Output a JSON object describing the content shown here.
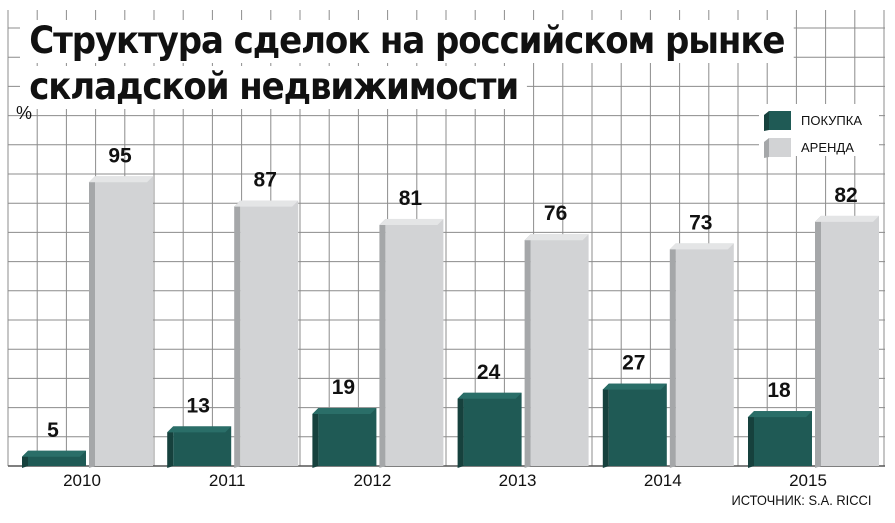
{
  "title": [
    "Структура сделок на российском рынке",
    "складской недвижимости"
  ],
  "unit": "%",
  "source": "ИСТОЧНИК: S.A. RICCI",
  "colors": {
    "purchase_front": "#1f5a55",
    "purchase_side": "#16413d",
    "purchase_top": "#2a6e68",
    "rent_front": "#d2d3d5",
    "rent_side": "#a5a7a9",
    "rent_top": "#e4e5e6",
    "grid": "#8c8c8c"
  },
  "chart_data": {
    "type": "bar",
    "categories": [
      "2010",
      "2011",
      "2012",
      "2013",
      "2014",
      "2015"
    ],
    "series": [
      {
        "name": "ПОКУПКА",
        "values": [
          5,
          13,
          19,
          24,
          27,
          18
        ]
      },
      {
        "name": "АРЕНДА",
        "values": [
          95,
          87,
          81,
          76,
          73,
          82
        ]
      }
    ],
    "ylabel": "%",
    "ylim": [
      0,
      100
    ],
    "grid": true,
    "legend_position": "top-right"
  }
}
